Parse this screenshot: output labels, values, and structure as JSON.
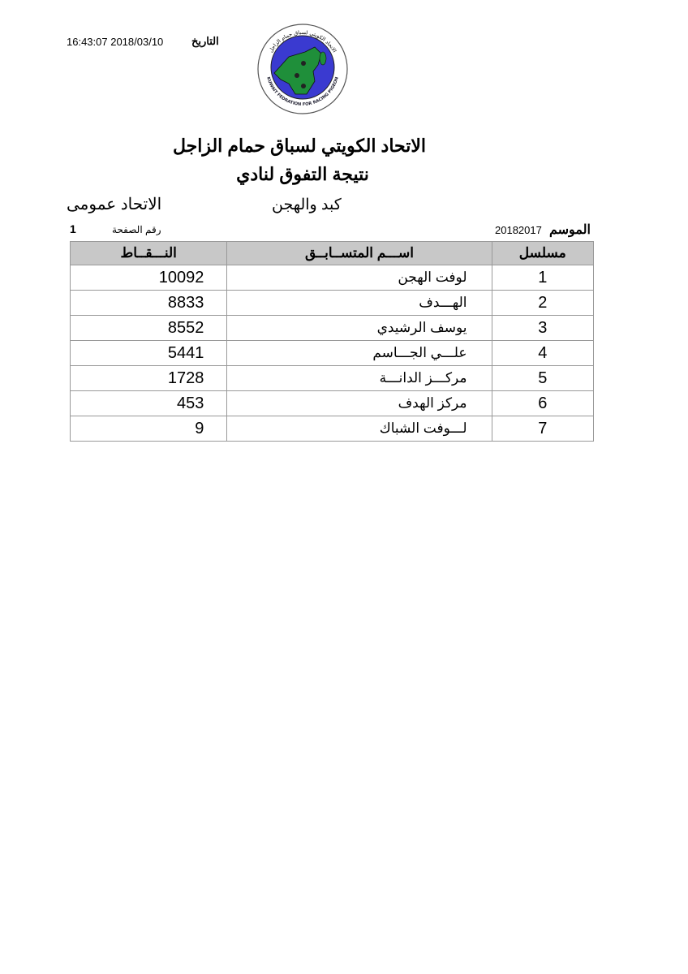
{
  "header": {
    "date_label": "التاريخ",
    "datetime": "16:43:07 2018/03/10",
    "logo": {
      "arabic_text": "الاتحاد الكويتي لسباق حمام الزاجل",
      "english_text": "KUWAIT FEDRATION FOR RACING PIGEON",
      "colors": {
        "ring": "#ffffff",
        "sea": "#3a3ad0",
        "land": "#1f8f3a"
      }
    },
    "title": "الاتحاد الكويتي لسباق حمام الزاجل",
    "subtitle": "نتيجة التفوق لنادي",
    "club": "كبد والهجن",
    "category": "الاتحاد عمومى",
    "page_label": "رقم الصفحة",
    "page_number": "1",
    "season_label": "الموسم",
    "season": "20182017"
  },
  "table": {
    "headers": {
      "serial": "مسلسل",
      "name": "اسم المتسابق",
      "points": "النقاط"
    },
    "header_display": {
      "serial": "مسلسل",
      "name": "اســـم المتســابــق",
      "points": "النـــقــاط"
    },
    "rows": [
      {
        "serial": "1",
        "name": "لوفت الهجن",
        "points": "10092"
      },
      {
        "serial": "2",
        "name": "الهـــدف",
        "points": "8833"
      },
      {
        "serial": "3",
        "name": "يوسف الرشيدي",
        "points": "8552"
      },
      {
        "serial": "4",
        "name": "علـــي الجـــاسم",
        "points": "5441"
      },
      {
        "serial": "5",
        "name": "مركـــز الدانـــة",
        "points": "1728"
      },
      {
        "serial": "6",
        "name": "مركز الهدف",
        "points": "453"
      },
      {
        "serial": "7",
        "name": "لـــوفت الشباك",
        "points": "9"
      }
    ]
  }
}
